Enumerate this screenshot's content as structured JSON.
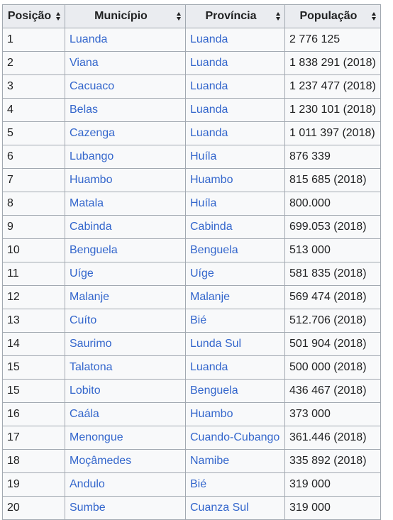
{
  "table": {
    "headers": [
      "Posição",
      "Município",
      "Província",
      "População"
    ],
    "rows": [
      {
        "pos": "1",
        "municipio": "Luanda",
        "provincia": "Luanda",
        "populacao": "2 776 125"
      },
      {
        "pos": "2",
        "municipio": "Viana",
        "provincia": "Luanda",
        "populacao": "1 838 291 (2018)"
      },
      {
        "pos": "3",
        "municipio": "Cacuaco",
        "provincia": "Luanda",
        "populacao": "1 237 477 (2018)"
      },
      {
        "pos": "4",
        "municipio": "Belas",
        "provincia": "Luanda",
        "populacao": "1 230 101 (2018)"
      },
      {
        "pos": "5",
        "municipio": "Cazenga",
        "provincia": "Luanda",
        "populacao": "1 011 397 (2018)"
      },
      {
        "pos": "6",
        "municipio": "Lubango",
        "provincia": "Huíla",
        "populacao": "876 339"
      },
      {
        "pos": "7",
        "municipio": "Huambo",
        "provincia": "Huambo",
        "populacao": "815 685 (2018)"
      },
      {
        "pos": "8",
        "municipio": "Matala",
        "provincia": "Huíla",
        "populacao": "800.000"
      },
      {
        "pos": "9",
        "municipio": "Cabinda",
        "provincia": "Cabinda",
        "populacao": "699.053 (2018)"
      },
      {
        "pos": "10",
        "municipio": "Benguela",
        "provincia": "Benguela",
        "populacao": "513 000"
      },
      {
        "pos": "11",
        "municipio": "Uíge",
        "provincia": "Uíge",
        "populacao": "581 835 (2018)"
      },
      {
        "pos": "12",
        "municipio": "Malanje",
        "provincia": "Malanje",
        "populacao": "569 474 (2018)"
      },
      {
        "pos": "13",
        "municipio": "Cuíto",
        "provincia": "Bié",
        "populacao": "512.706 (2018)"
      },
      {
        "pos": "14",
        "municipio": "Saurimo",
        "provincia": "Lunda Sul",
        "populacao": "501 904 (2018)"
      },
      {
        "pos": "15",
        "municipio": "Talatona",
        "provincia": "Luanda",
        "populacao": "500 000 (2018)"
      },
      {
        "pos": "15",
        "municipio": "Lobito",
        "provincia": "Benguela",
        "populacao": "436 467 (2018)"
      },
      {
        "pos": "16",
        "municipio": "Caála",
        "provincia": "Huambo",
        "populacao": "373 000"
      },
      {
        "pos": "17",
        "municipio": "Menongue",
        "provincia": "Cuando-Cubango",
        "populacao": "361.446 (2018)"
      },
      {
        "pos": "18",
        "municipio": "Moçâmedes",
        "provincia": "Namibe",
        "populacao": "335 892 (2018)"
      },
      {
        "pos": "19",
        "municipio": "Andulo",
        "provincia": "Bié",
        "populacao": "319 000"
      },
      {
        "pos": "20",
        "municipio": "Sumbe",
        "provincia": "Cuanza Sul",
        "populacao": "319 000"
      }
    ]
  },
  "colors": {
    "link": "#3366cc",
    "header_bg": "#eaecf0",
    "cell_bg": "#f8f9fa",
    "border": "#a2a9b1"
  }
}
